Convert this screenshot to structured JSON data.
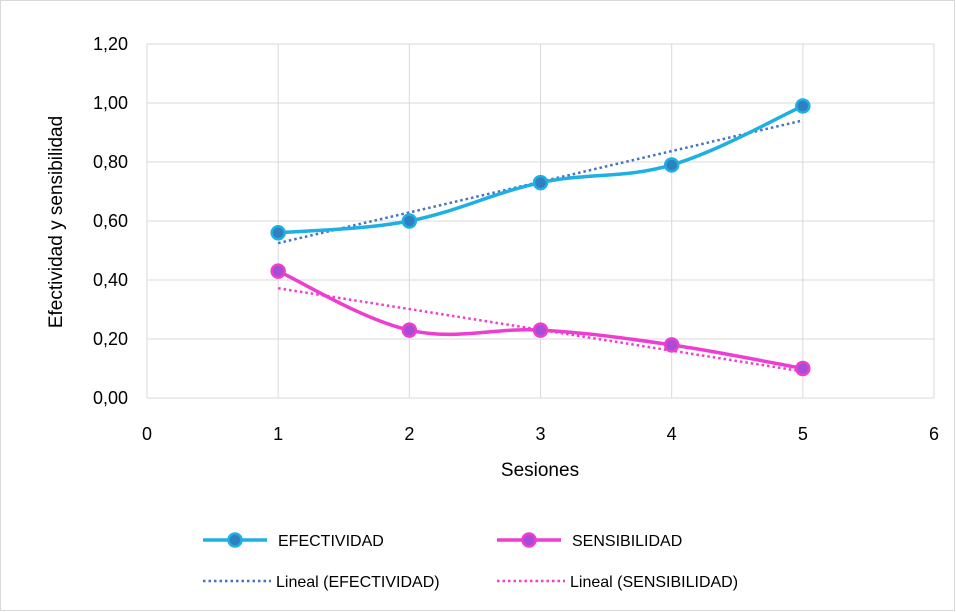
{
  "chart_data": {
    "type": "line",
    "title": "",
    "xlabel": "Sesiones",
    "ylabel": "Efectividad y sensibilidad",
    "xlim": [
      0,
      6
    ],
    "ylim": [
      0,
      1.2
    ],
    "x_ticks": [
      "0",
      "1",
      "2",
      "3",
      "4",
      "5",
      "6"
    ],
    "y_ticks": [
      "0,00",
      "0,20",
      "0,40",
      "0,60",
      "0,80",
      "1,00",
      "1,20"
    ],
    "grid": true,
    "legend_position": "bottom",
    "x": [
      1,
      2,
      3,
      4,
      5
    ],
    "series": [
      {
        "name": "EFECTIVIDAD",
        "values": [
          0.56,
          0.6,
          0.73,
          0.79,
          0.99
        ],
        "color": "#1fb0e3",
        "marker_color": "#2f7fc1",
        "style": "smooth"
      },
      {
        "name": "SENSIBILIDAD",
        "values": [
          0.43,
          0.23,
          0.23,
          0.18,
          0.1
        ],
        "color": "#ee3dd0",
        "marker_color": "#a64dd6",
        "style": "smooth"
      }
    ],
    "trendlines": [
      {
        "name": "Lineal (EFECTIVIDAD)",
        "type": "linear",
        "x": [
          1,
          5
        ],
        "values": [
          0.525,
          0.941
        ],
        "color": "#4472c4",
        "style": "dotted"
      },
      {
        "name": "Lineal (SENSIBILIDAD)",
        "type": "linear",
        "x": [
          1,
          5
        ],
        "values": [
          0.372,
          0.09
        ],
        "color": "#ee3dd0",
        "style": "dotted"
      }
    ]
  }
}
